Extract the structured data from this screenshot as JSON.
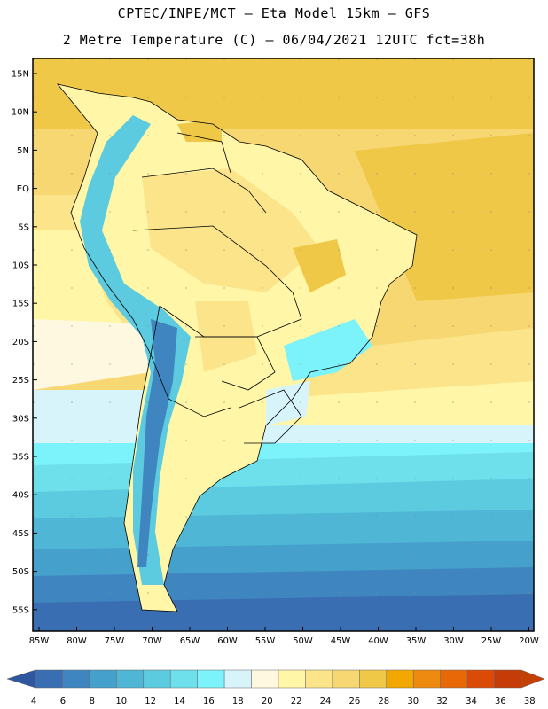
{
  "header": {
    "line1": "CPTEC/INPE/MCT –  Eta Model 15km – GFS",
    "line2": "2 Metre Temperature (C) – 06/04/2021 12UTC fct=38h"
  },
  "map": {
    "lat_labels": [
      "15N",
      "10N",
      "5N",
      "EQ",
      "5S",
      "10S",
      "15S",
      "20S",
      "25S",
      "30S",
      "35S",
      "40S",
      "45S",
      "50S",
      "55S"
    ],
    "lon_labels": [
      "85W",
      "80W",
      "75W",
      "70W",
      "65W",
      "60W",
      "55W",
      "50W",
      "45W",
      "40W",
      "35W",
      "30W",
      "25W",
      "20W"
    ]
  },
  "colorbar": {
    "ticks": [
      "4",
      "6",
      "8",
      "10",
      "12",
      "14",
      "16",
      "18",
      "20",
      "22",
      "24",
      "26",
      "28",
      "30",
      "32",
      "34",
      "36",
      "38"
    ],
    "colors": [
      "#3a6eb2",
      "#3f86c0",
      "#45a0cc",
      "#4fb6d6",
      "#5ccbe0",
      "#6ee0ec",
      "#7cf2fa",
      "#d8f4fb",
      "#fff8e0",
      "#fff6a8",
      "#fbe48a",
      "#f6d772",
      "#f0c848",
      "#f2a800",
      "#ee8a10",
      "#e86808",
      "#dc4a08",
      "#c63c08",
      "#2f57a0",
      "#c44000"
    ]
  }
}
